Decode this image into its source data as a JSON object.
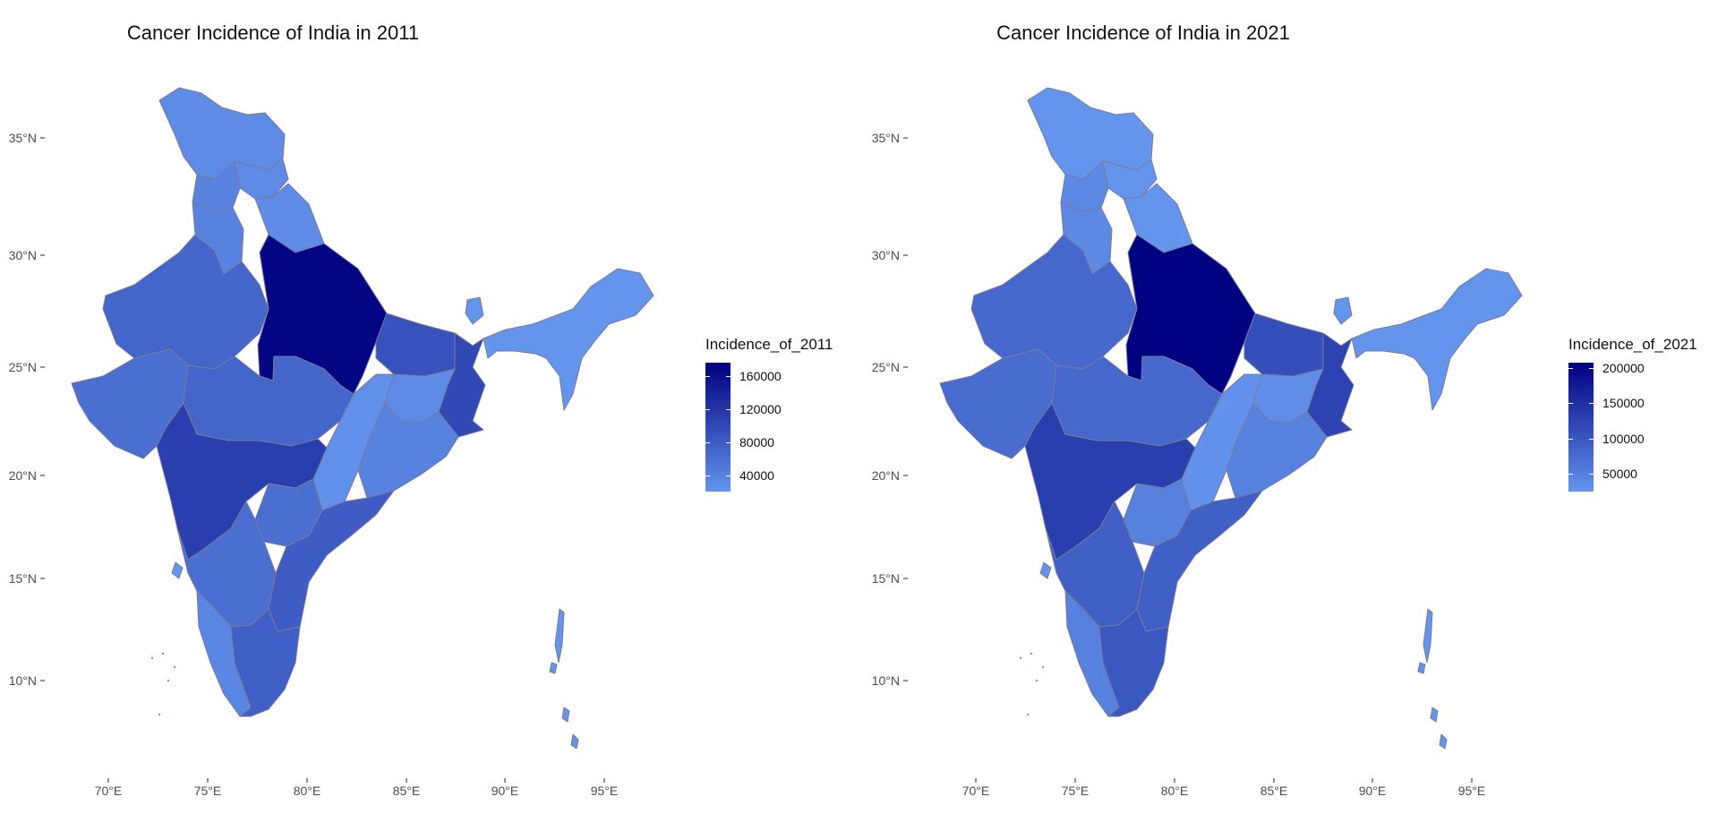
{
  "maps": [
    {
      "title": "Cancer Incidence of India in 2011",
      "legend_title": "Incidence_of_2011",
      "legend_labels": [
        "160000",
        "120000",
        "80000",
        "40000"
      ],
      "legend_values": [
        160000,
        120000,
        80000,
        40000
      ],
      "legend_range": [
        20000,
        176000
      ],
      "state_values": {
        "jammu_kashmir": 30000,
        "himachal": 30000,
        "punjab": 38000,
        "uttarakhand": 30000,
        "haryana": 40000,
        "rajasthan": 70000,
        "uttar_pradesh": 170000,
        "bihar": 90000,
        "west_bengal": 100000,
        "gujarat": 60000,
        "madhya_pradesh": 70000,
        "chhattisgarh": 25000,
        "jharkhand": 30000,
        "odisha": 40000,
        "maharashtra": 110000,
        "telangana": 60000,
        "andhra_pradesh": 80000,
        "karnataka": 60000,
        "goa": 3000,
        "kerala": 35000,
        "tamil_nadu": 75000,
        "northeast": 20000,
        "sikkim": 4000,
        "islands": 1000
      }
    },
    {
      "title": "Cancer Incidence of India in 2021",
      "legend_title": "Incidence_of_2021",
      "legend_labels": [
        "200000",
        "150000",
        "100000",
        "50000"
      ],
      "legend_values": [
        200000,
        150000,
        100000,
        50000
      ],
      "legend_range": [
        25000,
        207000
      ],
      "state_values": {
        "jammu_kashmir": 20000,
        "himachal": 20000,
        "punjab": 40000,
        "uttarakhand": 20000,
        "haryana": 40000,
        "rajasthan": 80000,
        "uttar_pradesh": 205000,
        "bihar": 110000,
        "west_bengal": 125000,
        "gujarat": 75000,
        "madhya_pradesh": 80000,
        "chhattisgarh": 30000,
        "jharkhand": 35000,
        "odisha": 50000,
        "maharashtra": 130000,
        "telangana": 50000,
        "andhra_pradesh": 90000,
        "karnataka": 90000,
        "goa": 3000,
        "kerala": 50000,
        "tamil_nadu": 100000,
        "northeast": 20000,
        "sikkim": 4000,
        "islands": 1000
      }
    }
  ],
  "x_ticks": [
    "70°E",
    "75°E",
    "80°E",
    "85°E",
    "90°E",
    "95°E"
  ],
  "y_ticks": [
    "35°N",
    "30°N",
    "25°N",
    "20°N",
    "15°N",
    "10°N"
  ],
  "colors": {
    "low": "#6495ed",
    "high": "#000080",
    "border": "#7a7a9a"
  }
}
